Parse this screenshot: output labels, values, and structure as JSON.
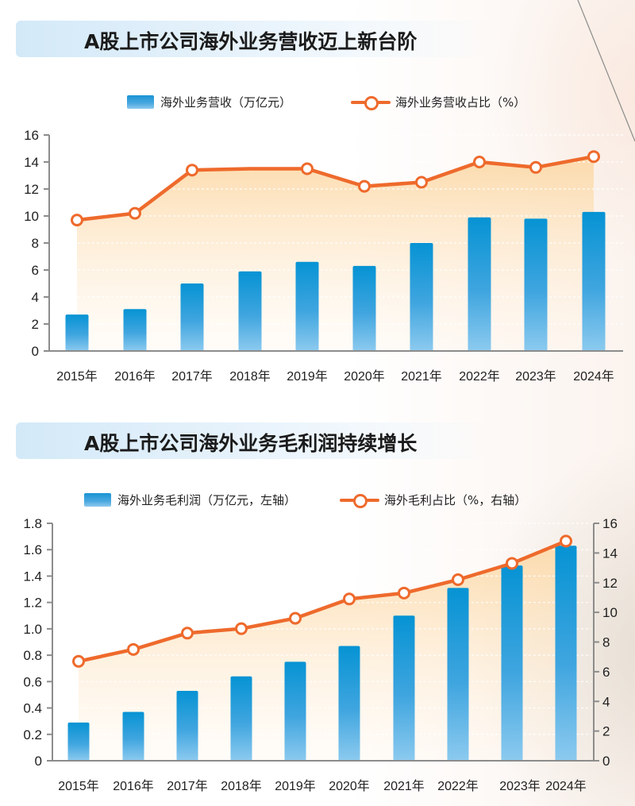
{
  "chart_data": [
    {
      "type": "bar",
      "title": "A股上市公司海外业务营收迈上新台阶",
      "categories": [
        "2015年",
        "2016年",
        "2017年",
        "2018年",
        "2019年",
        "2020年",
        "2021年",
        "2022年",
        "2023年",
        "2024年"
      ],
      "series": [
        {
          "name": "海外业务营收（万亿元）",
          "kind": "bar",
          "axis": "left",
          "values": [
            2.7,
            3.1,
            5.0,
            5.9,
            6.6,
            6.3,
            8.0,
            9.9,
            9.8,
            10.3
          ]
        },
        {
          "name": "海外业务营收占比（%）",
          "kind": "line",
          "axis": "left",
          "values": [
            9.7,
            10.2,
            13.4,
            13.5,
            13.5,
            12.2,
            12.5,
            14.0,
            13.6,
            14.4
          ],
          "markers": [
            true,
            true,
            true,
            false,
            true,
            true,
            true,
            true,
            true,
            true
          ]
        }
      ],
      "xlabel": "",
      "ylabel": "",
      "ylim": [
        0,
        16
      ],
      "yticks": [
        "0",
        "2",
        "4",
        "6",
        "8",
        "10",
        "12",
        "14",
        "16"
      ],
      "grid": true,
      "legend": "top-center",
      "colors": {
        "bar": "#0a8fd3",
        "line": "#ee6a2c",
        "area": "#fde0b8"
      }
    },
    {
      "type": "bar",
      "title": "A股上市公司海外业务毛利润持续增长",
      "categories": [
        "2015年",
        "2016年",
        "2017年",
        "2018年",
        "2019年",
        "2020年",
        "2021年",
        "2022年",
        "2023年",
        "2024年"
      ],
      "series": [
        {
          "name": "海外业务毛利润（万亿元，左轴）",
          "kind": "bar",
          "axis": "left",
          "values": [
            0.29,
            0.37,
            0.53,
            0.64,
            0.75,
            0.87,
            1.1,
            1.31,
            1.48,
            1.63
          ]
        },
        {
          "name": "海外毛利占比（%，右轴）",
          "kind": "line",
          "axis": "right",
          "values": [
            6.7,
            7.5,
            8.6,
            8.9,
            9.6,
            10.9,
            11.3,
            12.2,
            13.3,
            14.8
          ],
          "markers": [
            true,
            true,
            true,
            true,
            true,
            true,
            true,
            true,
            true,
            true
          ]
        }
      ],
      "xlabel": "",
      "ylabel": "",
      "ylim": [
        0,
        1.8
      ],
      "y2lim": [
        0,
        16
      ],
      "yticks": [
        "0",
        "0.2",
        "0.4",
        "0.6",
        "0.8",
        "1.0",
        "1.2",
        "1.4",
        "1.6",
        "1.8"
      ],
      "y2ticks": [
        "0",
        "2",
        "4",
        "6",
        "8",
        "10",
        "12",
        "14",
        "16"
      ],
      "grid": true,
      "legend": "top-center",
      "colors": {
        "bar": "#0a8fd3",
        "line": "#ee6a2c",
        "area": "#fde0b8"
      }
    }
  ],
  "chart1": {
    "title": "A股上市公司海外业务营收迈上新台阶",
    "legend_bar": "海外业务营收（万亿元）",
    "legend_line": "海外业务营收占比（%）"
  },
  "chart2": {
    "title": "A股上市公司海外业务毛利润持续增长",
    "legend_bar": "海外业务毛利润（万亿元，左轴）",
    "legend_line": "海外毛利占比（%，右轴）"
  }
}
